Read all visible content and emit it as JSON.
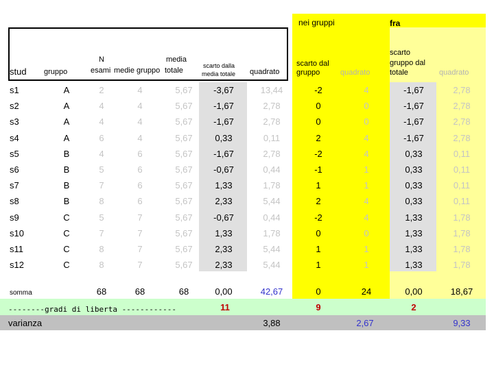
{
  "header": {
    "nei_gruppi": "nei gruppi",
    "fra": "fra",
    "stud": "stud",
    "gruppo": "gruppo",
    "n": "N",
    "esami": "esami",
    "media": "media",
    "medie_gruppo": "medie gruppo",
    "totale": "totale",
    "scarto_dalla_media_totale_1": "scarto dalla",
    "scarto_dalla_media_totale_2": "media totale",
    "quadrato": "quadrato",
    "scarto_dal_gruppo_1": "scarto dal",
    "scarto_dal_gruppo_2": "gruppo",
    "quadrato_2": "quadrato",
    "scarto_gruppo_totale_1": "scarto",
    "scarto_gruppo_totale_2": "gruppo dal",
    "scarto_gruppo_totale_3": "totale",
    "quadrato_3": "quadrato"
  },
  "rows": [
    {
      "stud": "s1",
      "gruppo": "A",
      "n": "2",
      "medie": "4",
      "totale": "5,67",
      "scarto": "-3,67",
      "quad": "13,44",
      "sg": "-2",
      "sgq": "4",
      "sgt": "-1,67",
      "sgtq": "2,78"
    },
    {
      "stud": "s2",
      "gruppo": "A",
      "n": "4",
      "medie": "4",
      "totale": "5,67",
      "scarto": "-1,67",
      "quad": "2,78",
      "sg": "0",
      "sgq": "0",
      "sgt": "-1,67",
      "sgtq": "2,78"
    },
    {
      "stud": "s3",
      "gruppo": "A",
      "n": "4",
      "medie": "4",
      "totale": "5,67",
      "scarto": "-1,67",
      "quad": "2,78",
      "sg": "0",
      "sgq": "0",
      "sgt": "-1,67",
      "sgtq": "2,78"
    },
    {
      "stud": "s4",
      "gruppo": "A",
      "n": "6",
      "medie": "4",
      "totale": "5,67",
      "scarto": "0,33",
      "quad": "0,11",
      "sg": "2",
      "sgq": "4",
      "sgt": "-1,67",
      "sgtq": "2,78"
    },
    {
      "stud": "s5",
      "gruppo": "B",
      "n": "4",
      "medie": "6",
      "totale": "5,67",
      "scarto": "-1,67",
      "quad": "2,78",
      "sg": "-2",
      "sgq": "4",
      "sgt": "0,33",
      "sgtq": "0,11"
    },
    {
      "stud": "s6",
      "gruppo": "B",
      "n": "5",
      "medie": "6",
      "totale": "5,67",
      "scarto": "-0,67",
      "quad": "0,44",
      "sg": "-1",
      "sgq": "1",
      "sgt": "0,33",
      "sgtq": "0,11"
    },
    {
      "stud": "s7",
      "gruppo": "B",
      "n": "7",
      "medie": "6",
      "totale": "5,67",
      "scarto": "1,33",
      "quad": "1,78",
      "sg": "1",
      "sgq": "1",
      "sgt": "0,33",
      "sgtq": "0,11"
    },
    {
      "stud": "s8",
      "gruppo": "B",
      "n": "8",
      "medie": "6",
      "totale": "5,67",
      "scarto": "2,33",
      "quad": "5,44",
      "sg": "2",
      "sgq": "4",
      "sgt": "0,33",
      "sgtq": "0,11"
    },
    {
      "stud": "s9",
      "gruppo": "C",
      "n": "5",
      "medie": "7",
      "totale": "5,67",
      "scarto": "-0,67",
      "quad": "0,44",
      "sg": "-2",
      "sgq": "4",
      "sgt": "1,33",
      "sgtq": "1,78"
    },
    {
      "stud": "s10",
      "gruppo": "C",
      "n": "7",
      "medie": "7",
      "totale": "5,67",
      "scarto": "1,33",
      "quad": "1,78",
      "sg": "0",
      "sgq": "0",
      "sgt": "1,33",
      "sgtq": "1,78"
    },
    {
      "stud": "s11",
      "gruppo": "C",
      "n": "8",
      "medie": "7",
      "totale": "5,67",
      "scarto": "2,33",
      "quad": "5,44",
      "sg": "1",
      "sgq": "1",
      "sgt": "1,33",
      "sgtq": "1,78"
    },
    {
      "stud": "s12",
      "gruppo": "C",
      "n": "8",
      "medie": "7",
      "totale": "5,67",
      "scarto": "2,33",
      "quad": "5,44",
      "sg": "1",
      "sgq": "1",
      "sgt": "1,33",
      "sgtq": "1,78"
    }
  ],
  "somma": {
    "label": "somma",
    "n": "68",
    "medie": "68",
    "totale": "68",
    "scarto": "0,00",
    "quad": "42,67",
    "sg": "0",
    "sgq": "24",
    "sgt": "0,00",
    "sgtq": "18,67"
  },
  "gradi": {
    "label": "--------gradi di liberta ------------",
    "totale": "11",
    "gruppo": "9",
    "fra": "2"
  },
  "varianza": {
    "label": "varianza",
    "totale": "3,88",
    "gruppo": "2,67",
    "fra": "9,33"
  }
}
